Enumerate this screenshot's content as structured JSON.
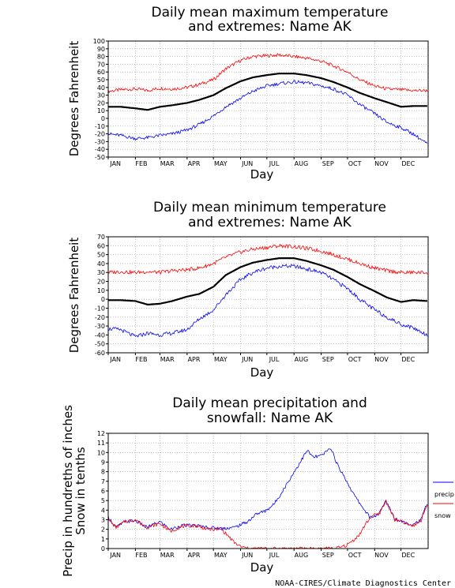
{
  "footer": {
    "credit": "NOAA-CIRES/Climate Diagnostics Center"
  },
  "chart_data": [
    {
      "type": "line",
      "title_line1": "Daily mean maximum temperature",
      "title_line2": "and extremes: Name AK",
      "xlabel": "Day",
      "ylabel": "Degrees Fahrenheit",
      "ylim": [
        -50,
        100
      ],
      "yticks": [
        100,
        90,
        80,
        70,
        60,
        50,
        40,
        30,
        20,
        10,
        0,
        -10,
        -20,
        -30,
        -40,
        -50
      ],
      "months": [
        "JAN",
        "FEB",
        "MAR",
        "APR",
        "MAY",
        "JUN",
        "JUL",
        "AUG",
        "SEP",
        "OCT",
        "NOV",
        "DEC"
      ],
      "grid": true,
      "series": [
        {
          "color": "#ff0000",
          "width": 0.8,
          "day": [
            1,
            15,
            32,
            46,
            60,
            74,
            91,
            105,
            121,
            135,
            152,
            166,
            182,
            196,
            213,
            227,
            244,
            258,
            274,
            288,
            305,
            319,
            335,
            349,
            365
          ],
          "values": [
            35,
            37,
            38,
            36,
            39,
            38,
            40,
            44,
            50,
            64,
            75,
            80,
            81,
            82,
            80,
            78,
            74,
            68,
            60,
            50,
            42,
            38,
            37,
            36,
            36
          ]
        },
        {
          "color": "#000000",
          "width": 2.2,
          "day": [
            1,
            15,
            32,
            46,
            60,
            74,
            91,
            105,
            121,
            135,
            152,
            166,
            182,
            196,
            213,
            227,
            244,
            258,
            274,
            288,
            305,
            319,
            335,
            349,
            365
          ],
          "values": [
            15,
            15,
            13,
            11,
            15,
            17,
            20,
            24,
            30,
            39,
            48,
            53,
            56,
            58,
            58,
            56,
            52,
            47,
            40,
            33,
            26,
            21,
            15,
            16,
            16
          ]
        },
        {
          "color": "#0000ff",
          "width": 0.8,
          "day": [
            1,
            15,
            32,
            46,
            60,
            74,
            91,
            105,
            121,
            135,
            152,
            166,
            182,
            196,
            213,
            227,
            244,
            258,
            274,
            288,
            305,
            319,
            335,
            349,
            365
          ],
          "values": [
            -20,
            -22,
            -26,
            -25,
            -22,
            -20,
            -15,
            -8,
            3,
            15,
            26,
            35,
            42,
            45,
            47,
            46,
            42,
            38,
            30,
            18,
            6,
            -5,
            -12,
            -20,
            -33
          ]
        }
      ]
    },
    {
      "type": "line",
      "title_line1": "Daily mean minimum temperature",
      "title_line2": "and extremes: Name AK",
      "xlabel": "Day",
      "ylabel": "Degrees Fahrenheit",
      "ylim": [
        -60,
        70
      ],
      "yticks": [
        70,
        60,
        50,
        40,
        30,
        20,
        10,
        0,
        -10,
        -20,
        -30,
        -40,
        -50,
        -60
      ],
      "months": [
        "JAN",
        "FEB",
        "MAR",
        "APR",
        "MAY",
        "JUN",
        "JUL",
        "AUG",
        "SEP",
        "OCT",
        "NOV",
        "DEC"
      ],
      "grid": true,
      "series": [
        {
          "color": "#ff0000",
          "width": 0.8,
          "day": [
            1,
            15,
            32,
            46,
            60,
            74,
            91,
            105,
            121,
            135,
            152,
            166,
            182,
            196,
            213,
            227,
            244,
            258,
            274,
            288,
            305,
            319,
            335,
            349,
            365
          ],
          "values": [
            30,
            31,
            30,
            31,
            30,
            32,
            33,
            35,
            40,
            47,
            53,
            56,
            58,
            60,
            59,
            57,
            54,
            50,
            45,
            40,
            35,
            32,
            30,
            30,
            30
          ]
        },
        {
          "color": "#000000",
          "width": 2.2,
          "day": [
            1,
            15,
            32,
            46,
            60,
            74,
            91,
            105,
            121,
            135,
            152,
            166,
            182,
            196,
            213,
            227,
            244,
            258,
            274,
            288,
            305,
            319,
            335,
            349,
            365
          ],
          "values": [
            -1,
            -1,
            -2,
            -6,
            -5,
            -2,
            3,
            6,
            14,
            27,
            36,
            41,
            44,
            46,
            46,
            43,
            38,
            33,
            25,
            17,
            9,
            2,
            -3,
            -1,
            -2
          ]
        },
        {
          "color": "#0000ff",
          "width": 0.8,
          "day": [
            1,
            15,
            32,
            46,
            60,
            74,
            91,
            105,
            121,
            135,
            152,
            166,
            182,
            196,
            213,
            227,
            244,
            258,
            274,
            288,
            305,
            319,
            335,
            349,
            365
          ],
          "values": [
            -33,
            -34,
            -42,
            -38,
            -40,
            -38,
            -34,
            -22,
            -12,
            5,
            22,
            30,
            35,
            37,
            37,
            34,
            30,
            22,
            12,
            0,
            -12,
            -20,
            -28,
            -32,
            -40
          ]
        }
      ]
    },
    {
      "type": "line",
      "title_line1": "Daily mean precipitation and",
      "title_line2": "snowfall: Name AK",
      "xlabel": "Day",
      "ylabel_line1": "Precip in hundreths of inches",
      "ylabel_line2": "Snow in tenths",
      "ylim": [
        0,
        12
      ],
      "yticks": [
        12,
        11,
        10,
        9,
        8,
        7,
        6,
        5,
        4,
        3,
        2,
        1,
        0
      ],
      "months": [
        "JAN",
        "FEB",
        "MAR",
        "APR",
        "MAY",
        "JUN",
        "JUL",
        "AUG",
        "SEP",
        "OCT",
        "NOV",
        "DEC"
      ],
      "grid": true,
      "legend_position": "right",
      "series": [
        {
          "name": "precip",
          "color": "#0000ff",
          "width": 0.8,
          "day": [
            1,
            10,
            20,
            32,
            45,
            60,
            72,
            85,
            100,
            115,
            130,
            145,
            160,
            170,
            180,
            190,
            200,
            210,
            220,
            228,
            235,
            245,
            255,
            262,
            272,
            282,
            292,
            300,
            310,
            318,
            328,
            338,
            348,
            358,
            365
          ],
          "values": [
            3.3,
            2.2,
            2.8,
            2.9,
            2.2,
            2.8,
            2.0,
            2.4,
            2.4,
            2.2,
            2.1,
            2.2,
            2.8,
            3.6,
            3.9,
            4.6,
            6.0,
            7.5,
            9.0,
            10.2,
            9.5,
            9.7,
            10.5,
            8.8,
            7.2,
            5.5,
            4.2,
            3.2,
            3.6,
            5.0,
            3.1,
            2.8,
            2.5,
            3.0,
            4.8
          ]
        },
        {
          "name": "snow",
          "color": "#ff0000",
          "width": 0.8,
          "day": [
            1,
            10,
            20,
            32,
            45,
            60,
            72,
            85,
            100,
            115,
            130,
            137,
            145,
            152,
            160,
            180,
            200,
            220,
            240,
            258,
            265,
            272,
            280,
            288,
            295,
            302,
            310,
            318,
            328,
            338,
            348,
            358,
            365
          ],
          "values": [
            3.0,
            2.2,
            2.8,
            3.0,
            2.2,
            2.6,
            1.8,
            2.3,
            2.4,
            2.0,
            2.0,
            1.4,
            0.6,
            0.2,
            0.0,
            0.0,
            0.0,
            0.0,
            0.0,
            0.0,
            0.1,
            0.3,
            0.8,
            1.5,
            2.6,
            3.4,
            3.6,
            4.9,
            3.0,
            2.7,
            2.3,
            2.9,
            4.7
          ]
        }
      ]
    }
  ]
}
